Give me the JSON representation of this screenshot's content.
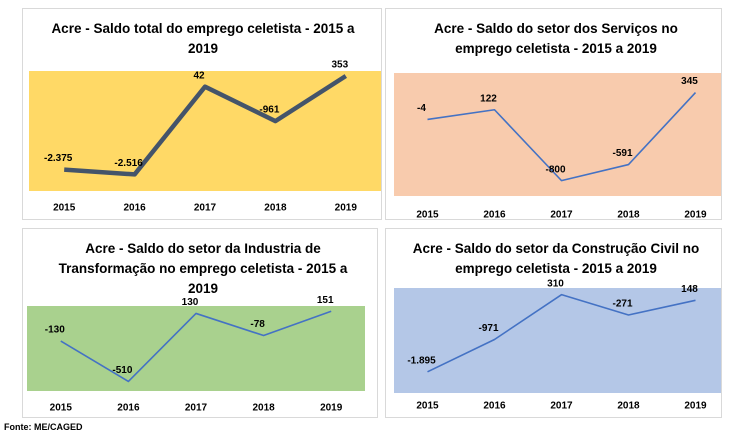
{
  "chart_data": [
    {
      "type": "line",
      "title": "Acre - Saldo total do emprego celetista  - 2015 a 2019",
      "categories": [
        "2015",
        "2016",
        "2017",
        "2018",
        "2019"
      ],
      "values": [
        -2375,
        -2516,
        42,
        -961,
        353
      ],
      "value_labels": [
        "-2.375",
        "-2.516",
        "42",
        "-961",
        "353"
      ],
      "color": "#44546a",
      "background": "#ffd966",
      "ylim": [
        -3000,
        500
      ]
    },
    {
      "type": "line",
      "title": "Acre - Saldo do setor dos Serviços no emprego celetista  - 2015 a 2019",
      "categories": [
        "2015",
        "2016",
        "2017",
        "2018",
        "2019"
      ],
      "values": [
        -4,
        122,
        -800,
        -591,
        345
      ],
      "color": "#4472c4",
      "background": "#f8cbad",
      "ylim": [
        -1000,
        600
      ]
    },
    {
      "type": "line",
      "title": "Acre - Saldo do setor da Industria de Transformação no emprego celetista  - 2015 a 2019",
      "categories": [
        "2015",
        "2016",
        "2017",
        "2018",
        "2019"
      ],
      "values": [
        -130,
        -510,
        130,
        -78,
        151
      ],
      "color": "#4472c4",
      "background": "#a9d18e",
      "ylim": [
        -600,
        200
      ]
    },
    {
      "type": "line",
      "title": "Acre - Saldo do setor da Construção Civil no emprego celetista  - 2015 a 2019",
      "categories": [
        "2015",
        "2016",
        "2017",
        "2018",
        "2019"
      ],
      "values": [
        -1895,
        -971,
        310,
        -271,
        148
      ],
      "value_labels": [
        "-1.895",
        "-971",
        "310",
        "-271",
        "148"
      ],
      "color": "#4472c4",
      "background": "#b4c7e7",
      "ylim": [
        -2500,
        500
      ]
    }
  ],
  "source": "Fonte: ME/CAGED"
}
